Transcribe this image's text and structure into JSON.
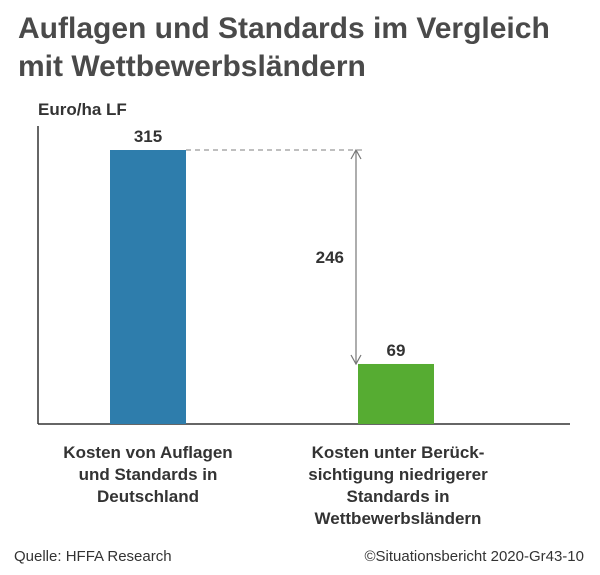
{
  "title": "Auflagen und Standards im Vergleich mit Wettbewerbsländern",
  "source": "Quelle: HFFA Research",
  "copyright": "©Situationsbericht 2020-Gr43-10",
  "chart_data": {
    "type": "bar",
    "ylabel": "Euro/ha LF",
    "categories": [
      "Kosten von Auflagen\nund Standards in\nDeutschland",
      "Kosten unter Berück-\nsichtigung niedrigerer\nStandards in\nWettbewerbsländern"
    ],
    "values": [
      315,
      69
    ],
    "value_labels": [
      "315",
      "69"
    ],
    "colors": [
      "#2e7dac",
      "#56ac32"
    ],
    "ylim": [
      0,
      315
    ],
    "grid": false,
    "annotation": {
      "type": "difference-arrow",
      "from": 315,
      "to": 69,
      "label": "246"
    }
  }
}
